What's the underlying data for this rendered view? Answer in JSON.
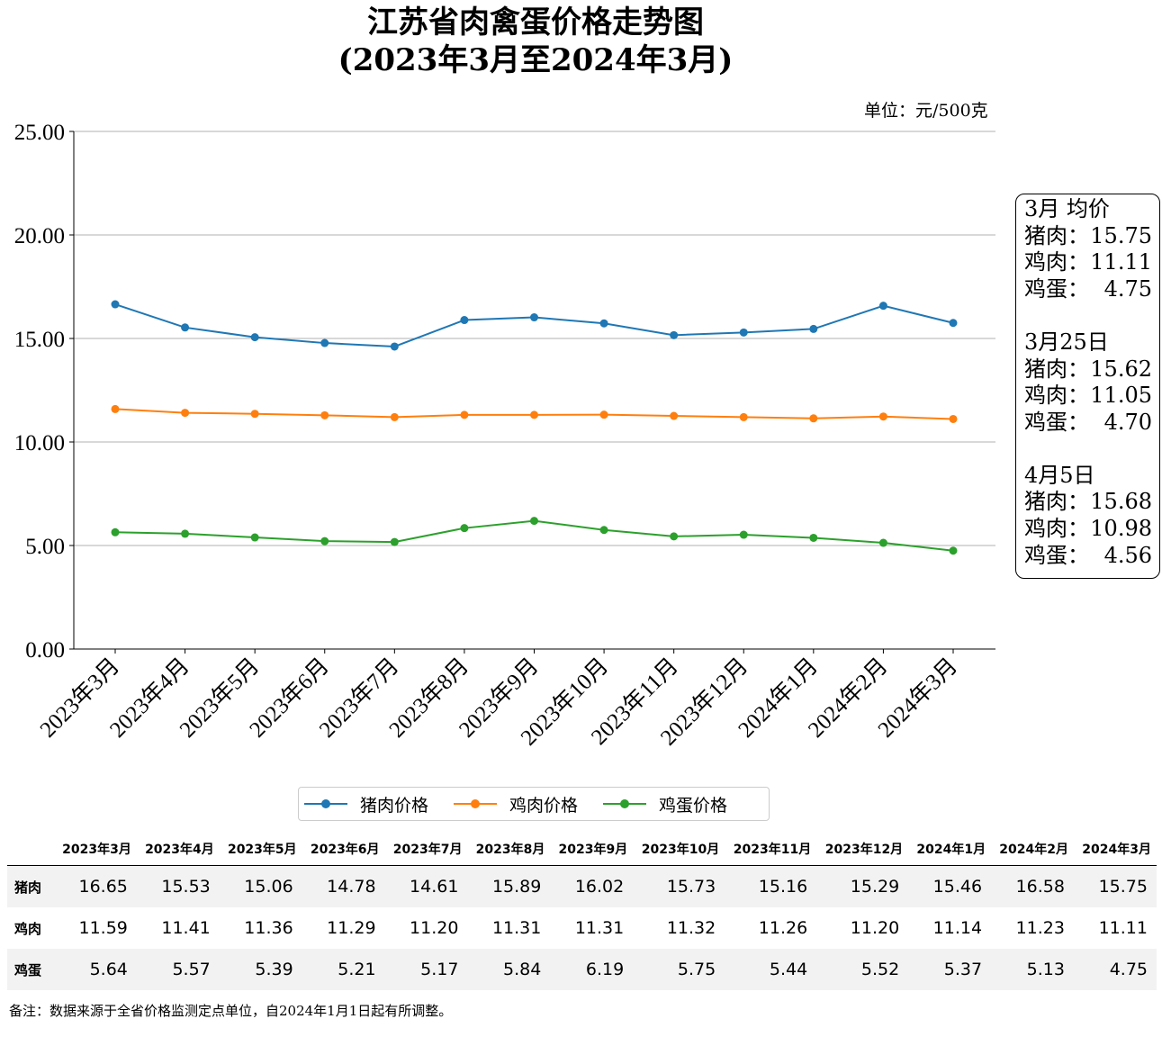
{
  "title_line1": "江苏省肉禽蛋价格走势图",
  "title_line2": "(2023年3月至2024年3月)",
  "unit": "单位：元/500克",
  "colors": {
    "pork": "#1f77b4",
    "chicken": "#ff7f0e",
    "egg": "#2ca02c"
  },
  "chart_data": {
    "type": "line",
    "categories": [
      "2023年3月",
      "2023年4月",
      "2023年5月",
      "2023年6月",
      "2023年7月",
      "2023年8月",
      "2023年9月",
      "2023年10月",
      "2023年11月",
      "2023年12月",
      "2024年1月",
      "2024年2月",
      "2024年3月"
    ],
    "series": [
      {
        "name": "猪肉价格",
        "values": [
          16.65,
          15.53,
          15.06,
          14.78,
          14.61,
          15.89,
          16.02,
          15.73,
          15.16,
          15.29,
          15.46,
          16.58,
          15.75
        ]
      },
      {
        "name": "鸡肉价格",
        "values": [
          11.59,
          11.41,
          11.36,
          11.29,
          11.2,
          11.31,
          11.31,
          11.32,
          11.26,
          11.2,
          11.14,
          11.23,
          11.11
        ]
      },
      {
        "name": "鸡蛋价格",
        "values": [
          5.64,
          5.57,
          5.39,
          5.21,
          5.17,
          5.84,
          6.19,
          5.75,
          5.44,
          5.52,
          5.37,
          5.13,
          4.75
        ]
      }
    ],
    "ylim": [
      0,
      25
    ],
    "yticks": [
      "0.00",
      "5.00",
      "10.00",
      "15.00",
      "20.00",
      "25.00"
    ],
    "grid": "horizontal",
    "legend": "bottom"
  },
  "sidebox": [
    {
      "heading": "3月 均价",
      "rows": [
        {
          "label": "猪肉：",
          "value": "15.75"
        },
        {
          "label": "鸡肉：",
          "value": "11.11"
        },
        {
          "label": "鸡蛋：",
          "value": "4.75"
        }
      ]
    },
    {
      "heading": "3月25日",
      "rows": [
        {
          "label": "猪肉：",
          "value": "15.62"
        },
        {
          "label": "鸡肉：",
          "value": "11.05"
        },
        {
          "label": "鸡蛋：",
          "value": "4.70"
        }
      ]
    },
    {
      "heading": "4月5日",
      "rows": [
        {
          "label": "猪肉：",
          "value": "15.68"
        },
        {
          "label": "鸡肉：",
          "value": "10.98"
        },
        {
          "label": "鸡蛋：",
          "value": "4.56"
        }
      ]
    }
  ],
  "table": {
    "row_labels": [
      "猪肉",
      "鸡肉",
      "鸡蛋"
    ],
    "rows": [
      [
        "16.65",
        "15.53",
        "15.06",
        "14.78",
        "14.61",
        "15.89",
        "16.02",
        "15.73",
        "15.16",
        "15.29",
        "15.46",
        "16.58",
        "15.75"
      ],
      [
        "11.59",
        "11.41",
        "11.36",
        "11.29",
        "11.20",
        "11.31",
        "11.31",
        "11.32",
        "11.26",
        "11.20",
        "11.14",
        "11.23",
        "11.11"
      ],
      [
        "5.64",
        "5.57",
        "5.39",
        "5.21",
        "5.17",
        "5.84",
        "6.19",
        "5.75",
        "5.44",
        "5.52",
        "5.37",
        "5.13",
        "4.75"
      ]
    ]
  },
  "note": "备注：数据来源于全省价格监测定点单位，自2024年1月1日起有所调整。"
}
